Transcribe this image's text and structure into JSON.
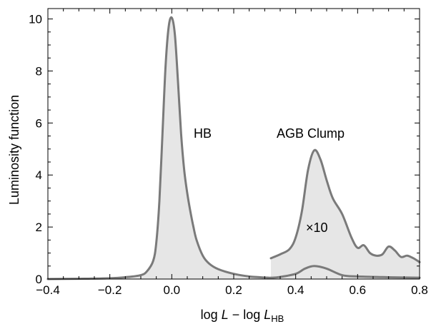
{
  "chart_data": {
    "type": "area",
    "xlabel_parts": {
      "a": "log ",
      "b": "L",
      "c": " − log ",
      "d": "L",
      "e": "HB"
    },
    "ylabel": "Luminosity function",
    "xlim": [
      -0.4,
      0.8
    ],
    "ylim": [
      0,
      10.4
    ],
    "x_ticks": [
      "-0.4",
      "-0.2",
      "0.0",
      "0.2",
      "0.4",
      "0.6",
      "0.8"
    ],
    "x_tick_labels": [
      "−0.4",
      "−0.2",
      "0.0",
      "0.2",
      "0.4",
      "0.6",
      "0.8"
    ],
    "y_ticks": [
      "0",
      "2",
      "4",
      "6",
      "8",
      "10"
    ],
    "grid": false,
    "annotations": {
      "hb": "HB",
      "agb_clump": "AGB Clump",
      "scale": "×10"
    },
    "colors": {
      "line": "#7a7a7a",
      "fill": "#e6e6e6",
      "axis": "#000000"
    },
    "series": [
      {
        "x": [
          -0.4,
          -0.3,
          -0.2,
          -0.15,
          -0.1,
          -0.08,
          -0.06,
          -0.05,
          -0.04,
          -0.03,
          -0.02,
          -0.01,
          0.0,
          0.01,
          0.02,
          0.03,
          0.04,
          0.05,
          0.06,
          0.07,
          0.08,
          0.1,
          0.12,
          0.15,
          0.2,
          0.25,
          0.3,
          0.32,
          0.35,
          0.4,
          0.43,
          0.46,
          0.5,
          0.55,
          0.6,
          0.7,
          0.8
        ],
        "y": [
          0.0,
          0.01,
          0.03,
          0.07,
          0.15,
          0.3,
          0.7,
          1.4,
          3.0,
          5.6,
          8.2,
          9.7,
          10.05,
          9.4,
          7.6,
          5.6,
          4.2,
          3.3,
          2.6,
          2.0,
          1.5,
          0.9,
          0.6,
          0.38,
          0.2,
          0.1,
          0.06,
          0.05,
          0.08,
          0.2,
          0.4,
          0.5,
          0.4,
          0.15,
          0.1,
          0.07,
          0.05
        ]
      },
      {
        "x": [
          0.32,
          0.35,
          0.38,
          0.4,
          0.42,
          0.44,
          0.46,
          0.48,
          0.5,
          0.52,
          0.55,
          0.58,
          0.6,
          0.62,
          0.64,
          0.66,
          0.68,
          0.7,
          0.72,
          0.74,
          0.76,
          0.78,
          0.8
        ],
        "y": [
          0.8,
          0.95,
          1.15,
          1.6,
          2.6,
          4.2,
          4.95,
          4.6,
          3.8,
          3.1,
          2.5,
          1.6,
          1.2,
          1.3,
          1.0,
          0.9,
          0.95,
          1.25,
          1.1,
          0.85,
          0.9,
          0.8,
          0.65
        ]
      }
    ]
  }
}
